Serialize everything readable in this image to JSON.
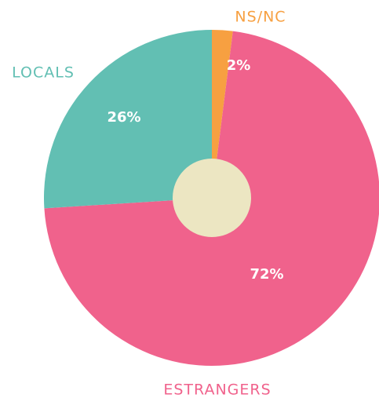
{
  "chart_data": {
    "type": "pie",
    "categories": [
      "NS/NC",
      "ESTRANGERS",
      "LOCALS"
    ],
    "values": [
      2,
      72,
      26
    ],
    "value_labels": [
      "2%",
      "72%",
      "26%"
    ],
    "colors": [
      "#f7a041",
      "#f0628c",
      "#62bfb3"
    ]
  }
}
